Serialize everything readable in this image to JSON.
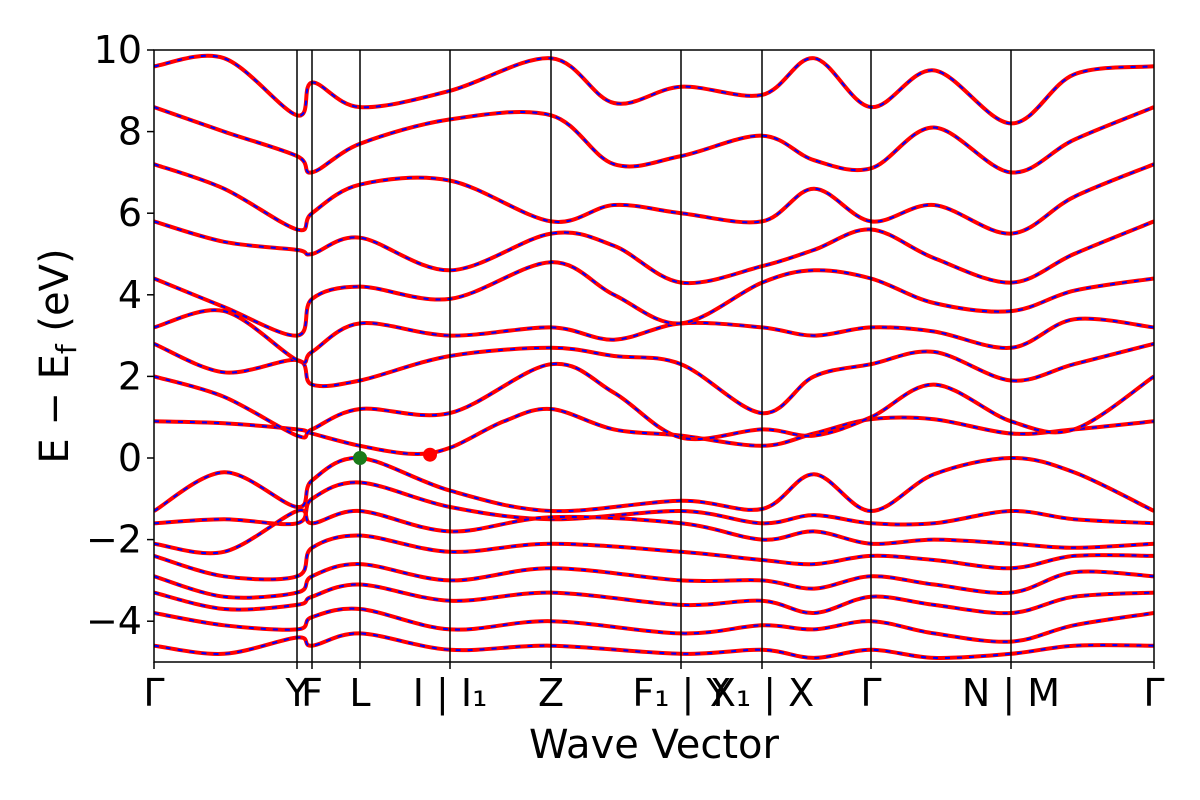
{
  "chart_data": {
    "type": "line",
    "title": "",
    "xlabel": "Wave Vector",
    "ylabel": "E − E_f (eV)",
    "ylabel_parts": {
      "main": "E − E",
      "sub": "f",
      "unit": " (eV)"
    },
    "ylim": [
      -5,
      10
    ],
    "xlim": [
      0,
      100
    ],
    "y_ticks": [
      -4,
      -2,
      0,
      2,
      4,
      6,
      8,
      10
    ],
    "y_tick_labels": [
      "−4",
      "−2",
      "0",
      "2",
      "4",
      "6",
      "8",
      "10"
    ],
    "grid": false,
    "legend": "none",
    "high_symmetry_points": [
      {
        "x": 0.0,
        "label": "Γ"
      },
      {
        "x": 14.3,
        "label": "Y"
      },
      {
        "x": 15.8,
        "label": "F"
      },
      {
        "x": 20.6,
        "label": "L"
      },
      {
        "x": 29.6,
        "label": "I | I₁"
      },
      {
        "x": 39.7,
        "label": "Z"
      },
      {
        "x": 52.7,
        "label": "F₁ | Y"
      },
      {
        "x": 60.8,
        "label": "X₁ | X"
      },
      {
        "x": 71.7,
        "label": "Γ"
      },
      {
        "x": 85.7,
        "label": "N | M"
      },
      {
        "x": 100.0,
        "label": "Γ"
      }
    ],
    "series": [
      {
        "color": "#ff0000",
        "overlay_color": "#0000ff",
        "style": "solid+dashed",
        "x": [
          0,
          7,
          14.3,
          15.8,
          20.6,
          29.6,
          39.7,
          52.7,
          60.8,
          66,
          71.7,
          78,
          85.7,
          92,
          100
        ],
        "y": [
          -1.3,
          -0.35,
          -1.2,
          -0.55,
          0.0,
          -0.8,
          -1.3,
          -1.05,
          -1.25,
          -0.4,
          -1.3,
          -0.4,
          0.0,
          -0.35,
          -1.3
        ]
      },
      {
        "color": "#ff0000",
        "overlay_color": "#0000ff",
        "style": "solid+dashed",
        "x": [
          0,
          7,
          14.3,
          15.8,
          20.6,
          29.6,
          39.7,
          52.7,
          60.8,
          66,
          71.7,
          78,
          85.7,
          92,
          100
        ],
        "y": [
          -1.6,
          -1.5,
          -1.6,
          -1.0,
          -0.6,
          -1.2,
          -1.5,
          -1.3,
          -1.6,
          -1.4,
          -1.6,
          -1.6,
          -1.3,
          -1.5,
          -1.6
        ]
      },
      {
        "color": "#ff0000",
        "overlay_color": "#0000ff",
        "style": "solid+dashed",
        "x": [
          0,
          7,
          14.3,
          15.8,
          20.6,
          29.6,
          39.7,
          52.7,
          60.8,
          66,
          71.7,
          78,
          85.7,
          92,
          100
        ],
        "y": [
          -2.1,
          -2.3,
          -1.3,
          -1.6,
          -1.3,
          -1.8,
          -1.45,
          -1.6,
          -2.0,
          -1.8,
          -2.1,
          -2.0,
          -2.1,
          -2.2,
          -2.1
        ]
      },
      {
        "color": "#ff0000",
        "overlay_color": "#0000ff",
        "style": "solid+dashed",
        "x": [
          0,
          7,
          14.3,
          15.8,
          20.6,
          29.6,
          39.7,
          52.7,
          60.8,
          66,
          71.7,
          78,
          85.7,
          92,
          100
        ],
        "y": [
          -2.4,
          -2.9,
          -2.9,
          -2.2,
          -1.9,
          -2.3,
          -2.1,
          -2.3,
          -2.5,
          -2.6,
          -2.4,
          -2.5,
          -2.7,
          -2.4,
          -2.4
        ]
      },
      {
        "color": "#ff0000",
        "overlay_color": "#0000ff",
        "style": "solid+dashed",
        "x": [
          0,
          7,
          14.3,
          15.8,
          20.6,
          29.6,
          39.7,
          52.7,
          60.8,
          66,
          71.7,
          78,
          85.7,
          92,
          100
        ],
        "y": [
          -2.9,
          -3.4,
          -3.3,
          -2.9,
          -2.6,
          -3.0,
          -2.7,
          -3.0,
          -3.0,
          -3.2,
          -2.9,
          -3.1,
          -3.3,
          -2.8,
          -2.9
        ]
      },
      {
        "color": "#ff0000",
        "overlay_color": "#0000ff",
        "style": "solid+dashed",
        "x": [
          0,
          7,
          14.3,
          15.8,
          20.6,
          29.6,
          39.7,
          52.7,
          60.8,
          66,
          71.7,
          78,
          85.7,
          92,
          100
        ],
        "y": [
          -3.3,
          -3.7,
          -3.6,
          -3.4,
          -3.1,
          -3.5,
          -3.3,
          -3.6,
          -3.5,
          -3.8,
          -3.4,
          -3.6,
          -3.8,
          -3.4,
          -3.3
        ]
      },
      {
        "color": "#ff0000",
        "overlay_color": "#0000ff",
        "style": "solid+dashed",
        "x": [
          0,
          7,
          14.3,
          15.8,
          20.6,
          29.6,
          39.7,
          52.7,
          60.8,
          66,
          71.7,
          78,
          85.7,
          92,
          100
        ],
        "y": [
          -3.8,
          -4.1,
          -4.2,
          -3.9,
          -3.7,
          -4.2,
          -4.0,
          -4.3,
          -4.1,
          -4.2,
          -4.0,
          -4.3,
          -4.5,
          -4.1,
          -3.8
        ]
      },
      {
        "color": "#ff0000",
        "overlay_color": "#0000ff",
        "style": "solid+dashed",
        "x": [
          0,
          7,
          14.3,
          15.8,
          20.6,
          29.6,
          39.7,
          52.7,
          60.8,
          66,
          71.7,
          78,
          85.7,
          92,
          100
        ],
        "y": [
          -4.6,
          -4.8,
          -4.4,
          -4.6,
          -4.3,
          -4.7,
          -4.6,
          -4.8,
          -4.7,
          -4.9,
          -4.7,
          -4.9,
          -4.8,
          -4.6,
          -4.6
        ]
      },
      {
        "color": "#ff0000",
        "overlay_color": "#0000ff",
        "style": "solid+dashed",
        "x": [
          0,
          7,
          14.3,
          15.8,
          20.6,
          25.9,
          29.6,
          35,
          39.7,
          46,
          52.7,
          60.8,
          66,
          71.7,
          78,
          85.7,
          92,
          100
        ],
        "y": [
          0.9,
          0.85,
          0.7,
          0.6,
          0.3,
          0.1,
          0.25,
          0.9,
          1.2,
          0.7,
          0.55,
          0.3,
          0.6,
          0.95,
          0.95,
          0.6,
          0.7,
          0.9
        ]
      },
      {
        "color": "#ff0000",
        "overlay_color": "#0000ff",
        "style": "solid+dashed",
        "x": [
          0,
          7,
          14.3,
          15.8,
          20.6,
          29.6,
          39.7,
          46,
          52.7,
          60.8,
          66,
          71.7,
          78,
          85.7,
          92,
          100
        ],
        "y": [
          2.0,
          1.5,
          0.55,
          0.7,
          1.2,
          1.1,
          2.3,
          1.6,
          0.5,
          0.7,
          0.55,
          1.0,
          1.8,
          0.9,
          0.7,
          2.0
        ]
      },
      {
        "color": "#ff0000",
        "overlay_color": "#0000ff",
        "style": "solid+dashed",
        "x": [
          0,
          7,
          14.3,
          15.8,
          20.6,
          29.6,
          39.7,
          46,
          52.7,
          60.8,
          66,
          71.7,
          78,
          85.7,
          92,
          100
        ],
        "y": [
          2.8,
          2.1,
          2.4,
          1.8,
          1.9,
          2.5,
          2.7,
          2.5,
          2.3,
          1.1,
          2.0,
          2.3,
          2.6,
          1.9,
          2.3,
          2.8
        ]
      },
      {
        "color": "#ff0000",
        "overlay_color": "#0000ff",
        "style": "solid+dashed",
        "x": [
          0,
          7,
          14.3,
          15.8,
          20.6,
          29.6,
          39.7,
          46,
          52.7,
          60.8,
          66,
          71.7,
          78,
          85.7,
          92,
          100
        ],
        "y": [
          3.2,
          3.6,
          2.4,
          2.6,
          3.3,
          3.0,
          3.2,
          2.9,
          3.3,
          3.2,
          3.0,
          3.2,
          3.1,
          2.7,
          3.4,
          3.2
        ]
      },
      {
        "color": "#ff0000",
        "overlay_color": "#0000ff",
        "style": "solid+dashed",
        "x": [
          0,
          7,
          14.3,
          15.8,
          20.6,
          29.6,
          39.7,
          46,
          52.7,
          60.8,
          66,
          71.7,
          78,
          85.7,
          92,
          100
        ],
        "y": [
          4.4,
          3.7,
          3.0,
          3.9,
          4.2,
          3.9,
          4.8,
          4.0,
          3.3,
          4.3,
          4.6,
          4.4,
          3.8,
          3.6,
          4.1,
          4.4
        ]
      },
      {
        "color": "#ff0000",
        "overlay_color": "#0000ff",
        "style": "solid+dashed",
        "x": [
          0,
          7,
          14.3,
          15.8,
          20.6,
          29.6,
          39.7,
          46,
          52.7,
          60.8,
          66,
          71.7,
          78,
          85.7,
          92,
          100
        ],
        "y": [
          5.8,
          5.3,
          5.1,
          5.0,
          5.4,
          4.6,
          5.5,
          5.2,
          4.3,
          4.7,
          5.1,
          5.6,
          4.9,
          4.3,
          5.0,
          5.8
        ]
      },
      {
        "color": "#ff0000",
        "overlay_color": "#0000ff",
        "style": "solid+dashed",
        "x": [
          0,
          7,
          14.3,
          15.8,
          20.6,
          29.6,
          39.7,
          46,
          52.7,
          60.8,
          66,
          71.7,
          78,
          85.7,
          92,
          100
        ],
        "y": [
          7.2,
          6.6,
          5.6,
          6.0,
          6.7,
          6.8,
          5.8,
          6.2,
          6.0,
          5.8,
          6.6,
          5.8,
          6.2,
          5.5,
          6.4,
          7.2
        ]
      },
      {
        "color": "#ff0000",
        "overlay_color": "#0000ff",
        "style": "solid+dashed",
        "x": [
          0,
          7,
          14.3,
          15.8,
          20.6,
          29.6,
          39.7,
          46,
          52.7,
          60.8,
          66,
          71.7,
          78,
          85.7,
          92,
          100
        ],
        "y": [
          8.6,
          8.0,
          7.4,
          7.0,
          7.7,
          8.3,
          8.4,
          7.2,
          7.4,
          7.9,
          7.3,
          7.1,
          8.1,
          7.0,
          7.8,
          8.6
        ]
      },
      {
        "color": "#ff0000",
        "overlay_color": "#0000ff",
        "style": "solid+dashed",
        "x": [
          0,
          7,
          14.3,
          15.8,
          20.6,
          29.6,
          39.7,
          46,
          52.7,
          60.8,
          66,
          71.7,
          78,
          85.7,
          92,
          100
        ],
        "y": [
          9.6,
          9.8,
          8.4,
          9.2,
          8.6,
          9.0,
          9.8,
          8.7,
          9.1,
          8.9,
          9.8,
          8.6,
          9.5,
          8.2,
          9.4,
          9.6
        ]
      }
    ],
    "markers": [
      {
        "x": 20.6,
        "y": 0.0,
        "color": "#1a7a1a"
      },
      {
        "x": 27.6,
        "y": 0.08,
        "color": "#ff0000"
      }
    ]
  }
}
